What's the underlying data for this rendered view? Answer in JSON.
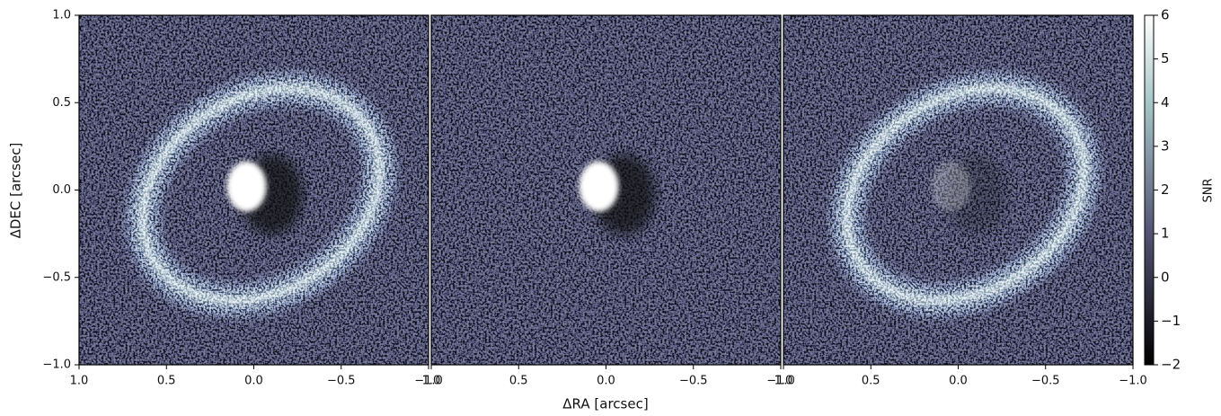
{
  "chart_data": {
    "type": "image",
    "xlabel": "ΔRA [arcsec]",
    "ylabel": "ΔDEC [arcsec]",
    "xlim": [
      1.0,
      -1.0
    ],
    "ylim": [
      -1.0,
      1.0
    ],
    "xticks": [
      {
        "value": 1.0,
        "label": "1.0"
      },
      {
        "value": 0.5,
        "label": "0.5"
      },
      {
        "value": 0.0,
        "label": "0.0"
      },
      {
        "value": -0.5,
        "label": "−0.5"
      },
      {
        "value": -1.0,
        "label": "−1.0"
      }
    ],
    "yticks": [
      {
        "value": 1.0,
        "label": "1.0"
      },
      {
        "value": 0.5,
        "label": "0.5"
      },
      {
        "value": 0.0,
        "label": "0.0"
      },
      {
        "value": -0.5,
        "label": "−0.5"
      },
      {
        "value": -1.0,
        "label": "−1.0"
      }
    ],
    "colormap": "bone",
    "colorbar": {
      "label": "SNR",
      "lim": [
        -2,
        6
      ],
      "ticks": [
        6,
        5,
        4,
        3,
        2,
        1,
        0,
        {
          "value": -1,
          "label": "−1"
        },
        {
          "value": -2,
          "label": "−2"
        }
      ]
    }
  }
}
